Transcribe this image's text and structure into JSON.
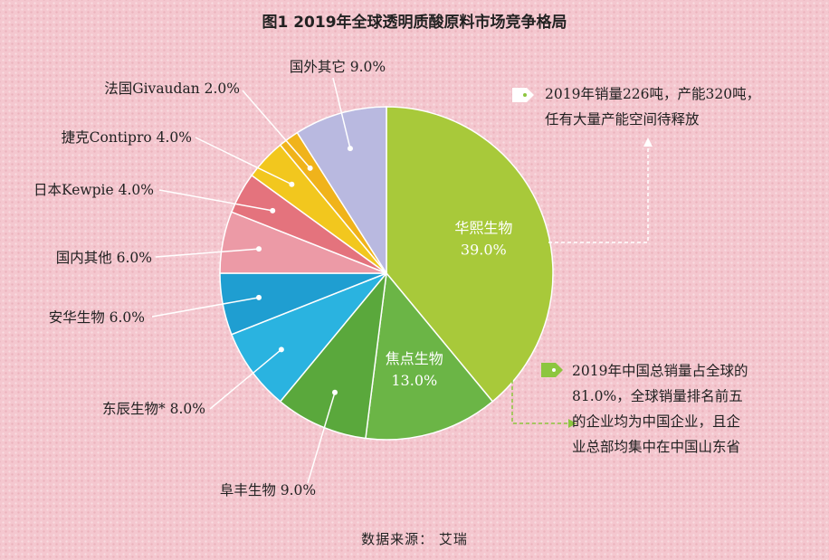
{
  "title": "图1  2019年全球透明质酸原料市场竞争格局",
  "source": "数据来源：  艾瑞",
  "notes": {
    "top_line1": "2019年销量226吨，产能320吨，",
    "top_line2": "任有大量产能空间待释放",
    "bottom_line1": "2019年中国总销量占全球的",
    "bottom_line2": "81.0%，全球销量排名前五",
    "bottom_line3": "的企业均为中国企业，且企",
    "bottom_line4": "业总部均集中在中国山东省"
  },
  "chart_data": {
    "type": "pie",
    "title": "图1  2019年全球透明质酸原料市场竞争格局",
    "slices": [
      {
        "label": "华熙生物",
        "value": 39.0,
        "value_label": "39.0%",
        "color": "#a8c93a"
      },
      {
        "label": "焦点生物",
        "value": 13.0,
        "value_label": "13.0%",
        "color": "#6bb546"
      },
      {
        "label": "阜丰生物",
        "value": 9.0,
        "value_label": "9.0%",
        "color": "#5aa83c"
      },
      {
        "label": "东辰生物*",
        "value": 8.0,
        "value_label": "8.0%",
        "color": "#2ab3e0"
      },
      {
        "label": "安华生物",
        "value": 6.0,
        "value_label": "6.0%",
        "color": "#1f9ed1"
      },
      {
        "label": "国内其他",
        "value": 6.0,
        "value_label": "6.0%",
        "color": "#ec9aa6"
      },
      {
        "label": "日本Kewpie",
        "value": 4.0,
        "value_label": "4.0%",
        "color": "#e4737d"
      },
      {
        "label": "捷克Contipro",
        "value": 4.0,
        "value_label": "4.0%",
        "color": "#f2c71e"
      },
      {
        "label": "法国Givaudan",
        "value": 2.0,
        "value_label": "2.0%",
        "color": "#f0b31b"
      },
      {
        "label": "国外其它",
        "value": 9.0,
        "value_label": "9.0%",
        "color": "#b9b9e0"
      }
    ]
  }
}
